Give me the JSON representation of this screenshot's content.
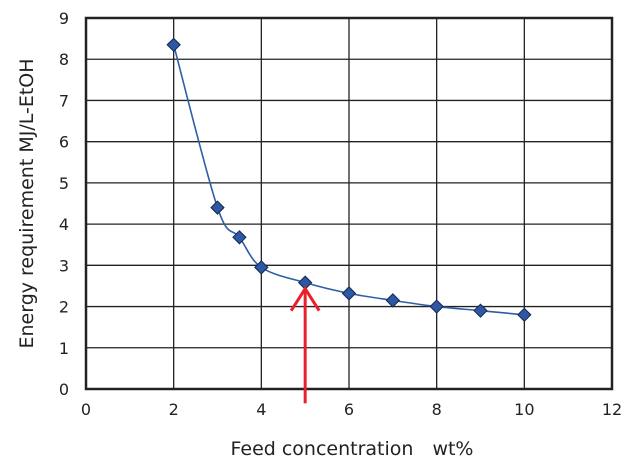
{
  "chart_data": {
    "type": "scatter",
    "xlabel": "Feed concentration　wt%",
    "ylabel": "Energy requirement MJ/L-EtOH",
    "xlim": [
      0,
      12
    ],
    "ylim": [
      0,
      9
    ],
    "x_ticks": [
      0,
      2,
      4,
      6,
      8,
      10,
      12
    ],
    "y_ticks": [
      0,
      1,
      2,
      3,
      4,
      5,
      6,
      7,
      8,
      9
    ],
    "grid": true,
    "series": [
      {
        "x": [
          2,
          3,
          3.5,
          4,
          5,
          6,
          7,
          8,
          9,
          10
        ],
        "y": [
          8.35,
          4.4,
          3.68,
          2.95,
          2.58,
          2.32,
          2.15,
          2.0,
          1.9,
          1.8
        ],
        "marker": "diamond",
        "line": "smooth"
      }
    ],
    "annotations": [
      {
        "type": "arrow",
        "x": 5,
        "y_from": -0.35,
        "y_to": 2.58,
        "color": "#e8202a"
      }
    ],
    "colors": {
      "line": "#2f5ea8",
      "marker": "#2e57a4",
      "grid": "#222222",
      "arrow": "#e8202a"
    }
  }
}
